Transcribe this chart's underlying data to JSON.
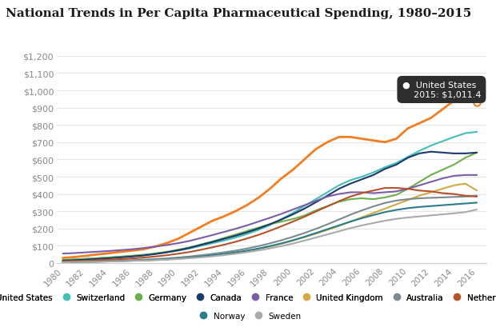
{
  "title": "National Trends in Per Capita Pharmaceutical Spending, 1980–2015",
  "title_color": "#1a1a1a",
  "rule_color": "#e8792a",
  "background_color": "#ffffff",
  "years": [
    1980,
    1981,
    1982,
    1983,
    1984,
    1985,
    1986,
    1987,
    1988,
    1989,
    1990,
    1991,
    1992,
    1993,
    1994,
    1995,
    1996,
    1997,
    1998,
    1999,
    2000,
    2001,
    2002,
    2003,
    2004,
    2005,
    2006,
    2007,
    2008,
    2009,
    2010,
    2011,
    2012,
    2013,
    2014,
    2015,
    2016
  ],
  "series": {
    "United States": {
      "color": "#f47d20",
      "data": [
        30,
        35,
        42,
        50,
        57,
        65,
        72,
        80,
        95,
        115,
        140,
        175,
        210,
        245,
        270,
        300,
        335,
        378,
        430,
        490,
        540,
        600,
        660,
        700,
        730,
        730,
        720,
        710,
        700,
        720,
        780,
        810,
        840,
        890,
        940,
        1011,
        null
      ]
    },
    "Switzerland": {
      "color": "#44bfb5",
      "data": [
        18,
        21,
        25,
        29,
        33,
        37,
        42,
        47,
        54,
        62,
        72,
        84,
        100,
        115,
        130,
        148,
        168,
        192,
        220,
        255,
        290,
        330,
        370,
        410,
        450,
        480,
        500,
        525,
        555,
        580,
        615,
        650,
        680,
        705,
        730,
        752,
        760
      ]
    },
    "Germany": {
      "color": "#6ab04c",
      "data": [
        18,
        21,
        24,
        28,
        32,
        37,
        42,
        48,
        56,
        65,
        77,
        90,
        108,
        125,
        145,
        165,
        185,
        205,
        225,
        240,
        255,
        275,
        305,
        330,
        355,
        370,
        375,
        370,
        380,
        395,
        430,
        470,
        510,
        540,
        570,
        610,
        640
      ]
    },
    "Canada": {
      "color": "#1b3a6b",
      "data": [
        14,
        17,
        20,
        24,
        28,
        33,
        38,
        44,
        52,
        62,
        74,
        88,
        105,
        122,
        140,
        158,
        178,
        200,
        225,
        252,
        282,
        315,
        352,
        390,
        430,
        460,
        485,
        510,
        545,
        570,
        610,
        635,
        645,
        640,
        635,
        635,
        640
      ]
    },
    "France": {
      "color": "#7b5ea7",
      "data": [
        55,
        58,
        62,
        66,
        70,
        75,
        80,
        87,
        95,
        104,
        115,
        128,
        145,
        162,
        180,
        198,
        218,
        240,
        262,
        285,
        310,
        335,
        360,
        385,
        400,
        410,
        410,
        405,
        410,
        415,
        430,
        450,
        470,
        490,
        505,
        510,
        510
      ]
    },
    "United Kingdom": {
      "color": "#d4a843",
      "data": [
        6,
        7,
        8,
        9,
        10,
        12,
        14,
        16,
        18,
        21,
        25,
        30,
        36,
        43,
        51,
        60,
        70,
        82,
        96,
        112,
        130,
        150,
        170,
        192,
        215,
        240,
        265,
        290,
        315,
        340,
        365,
        390,
        410,
        430,
        450,
        460,
        420
      ]
    },
    "Australia": {
      "color": "#7b8a8f",
      "data": [
        7,
        8,
        9,
        11,
        13,
        15,
        17,
        20,
        23,
        27,
        32,
        38,
        45,
        53,
        62,
        72,
        84,
        98,
        114,
        132,
        152,
        174,
        198,
        224,
        252,
        280,
        305,
        328,
        348,
        362,
        370,
        375,
        378,
        380,
        383,
        385,
        390
      ]
    },
    "Netherlands": {
      "color": "#b5522a",
      "data": [
        10,
        12,
        14,
        17,
        20,
        23,
        27,
        32,
        38,
        45,
        54,
        64,
        77,
        91,
        106,
        123,
        142,
        163,
        187,
        213,
        240,
        268,
        298,
        328,
        358,
        385,
        405,
        420,
        435,
        435,
        430,
        420,
        415,
        405,
        400,
        390,
        385
      ]
    },
    "Norway": {
      "color": "#2a7d8c",
      "data": [
        5,
        6,
        7,
        8,
        10,
        12,
        14,
        16,
        19,
        22,
        27,
        32,
        38,
        45,
        53,
        62,
        72,
        84,
        98,
        114,
        132,
        152,
        174,
        196,
        218,
        240,
        260,
        278,
        295,
        308,
        318,
        325,
        330,
        335,
        340,
        345,
        350
      ]
    },
    "Sweden": {
      "color": "#aaaaaa",
      "data": [
        5,
        6,
        7,
        8,
        9,
        11,
        13,
        15,
        17,
        20,
        24,
        28,
        33,
        39,
        46,
        54,
        63,
        73,
        85,
        98,
        113,
        130,
        148,
        166,
        184,
        202,
        218,
        232,
        245,
        256,
        264,
        270,
        276,
        282,
        288,
        295,
        310
      ]
    }
  },
  "tooltip_text1": "United States",
  "tooltip_text2": "2015: $1,011.4",
  "tooltip_dot_color": "#f47d20",
  "tooltip_bg": "#2c2c2c",
  "us_2015_value": 1011,
  "us_2016_value": 930,
  "ylim": [
    0,
    1300
  ],
  "yticks": [
    0,
    100,
    200,
    300,
    400,
    500,
    600,
    700,
    800,
    900,
    1000,
    1100,
    1200
  ],
  "xtick_years": [
    1980,
    1982,
    1984,
    1986,
    1988,
    1990,
    1992,
    1994,
    1996,
    1998,
    2000,
    2002,
    2004,
    2006,
    2008,
    2010,
    2012,
    2014,
    2016
  ],
  "legend_entries": [
    [
      "United States",
      "#f47d20"
    ],
    [
      "Switzerland",
      "#44bfb5"
    ],
    [
      "Germany",
      "#6ab04c"
    ],
    [
      "Canada",
      "#1b3a6b"
    ],
    [
      "France",
      "#7b5ea7"
    ],
    [
      "United Kingdom",
      "#d4a843"
    ],
    [
      "Australia",
      "#7b8a8f"
    ],
    [
      "Netherlands",
      "#b5522a"
    ],
    [
      "Norway",
      "#2a7d8c"
    ],
    [
      "Sweden",
      "#aaaaaa"
    ]
  ]
}
